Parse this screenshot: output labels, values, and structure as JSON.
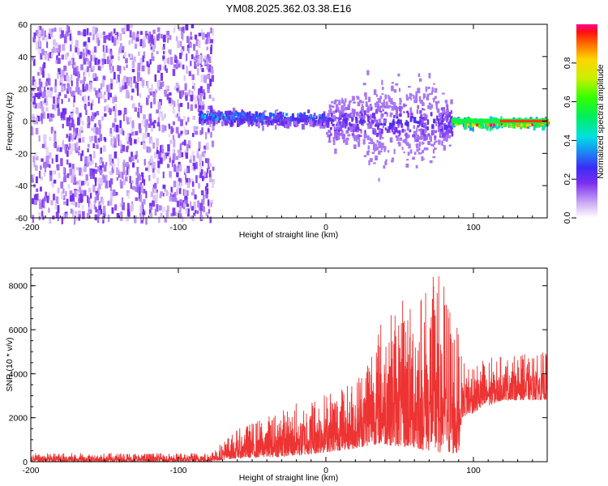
{
  "title": "YM08.2025.362.03.38.E16",
  "colors": {
    "snr_line": "#ee3333",
    "axes": "#000000",
    "background": "#ffffff"
  },
  "chart_data": [
    {
      "type": "heatmap",
      "name": "spectrogram",
      "xlabel": "Height of straight line (km)",
      "ylabel": "Frequency (Hz)",
      "xlim": [
        -200,
        150
      ],
      "ylim": [
        -60,
        60
      ],
      "xticks": [
        -200,
        -100,
        0,
        100
      ],
      "yticks": [
        -60,
        -40,
        -20,
        0,
        20,
        40,
        60
      ],
      "colorbar": {
        "label": "Normalized spectral amplitude",
        "range": [
          0,
          1
        ],
        "ticks": [
          "0.0",
          "0.2",
          "0.4",
          "0.6",
          "0.8"
        ],
        "tick_values": [
          0.0,
          0.2,
          0.4,
          0.6,
          0.8
        ]
      },
      "regions": [
        {
          "x_range": [
            -200,
            -87
          ],
          "description": "broadband noise",
          "freq_band": [
            -60,
            60
          ],
          "amplitude": 0.05
        },
        {
          "x_range": [
            -87,
            0
          ],
          "description": "signal",
          "center_freq": 4,
          "halfwidth": 6,
          "amplitude": 0.3
        },
        {
          "x_range": [
            0,
            85
          ],
          "description": "signal",
          "center_freq": 0,
          "halfwidth": 15,
          "amplitude": 0.2
        },
        {
          "x_range": [
            85,
            150
          ],
          "description": "strong narrowband",
          "center_freq": 0,
          "halfwidth": 3,
          "amplitude": 0.9
        }
      ]
    },
    {
      "type": "line",
      "name": "snr",
      "xlabel": "Height of straight line (km)",
      "ylabel": "SNR (10 * v/v)",
      "xlim": [
        -200,
        150
      ],
      "ylim": [
        0,
        8800
      ],
      "xticks": [
        -200,
        -100,
        0,
        100
      ],
      "yticks": [
        0,
        2000,
        4000,
        6000,
        8000
      ],
      "envelope": [
        {
          "x": -200,
          "low": 0,
          "high": 400
        },
        {
          "x": -80,
          "low": 0,
          "high": 400
        },
        {
          "x": -60,
          "low": 150,
          "high": 1500
        },
        {
          "x": -20,
          "low": 250,
          "high": 2700
        },
        {
          "x": 20,
          "low": 600,
          "high": 3700
        },
        {
          "x": 35,
          "low": 800,
          "high": 6500
        },
        {
          "x": 60,
          "low": 600,
          "high": 7800
        },
        {
          "x": 78,
          "low": 400,
          "high": 8800
        },
        {
          "x": 90,
          "low": 300,
          "high": 6000
        },
        {
          "x": 92,
          "low": 2000,
          "high": 4700
        },
        {
          "x": 120,
          "low": 2800,
          "high": 4800
        },
        {
          "x": 150,
          "low": 2800,
          "high": 5000
        }
      ]
    }
  ]
}
